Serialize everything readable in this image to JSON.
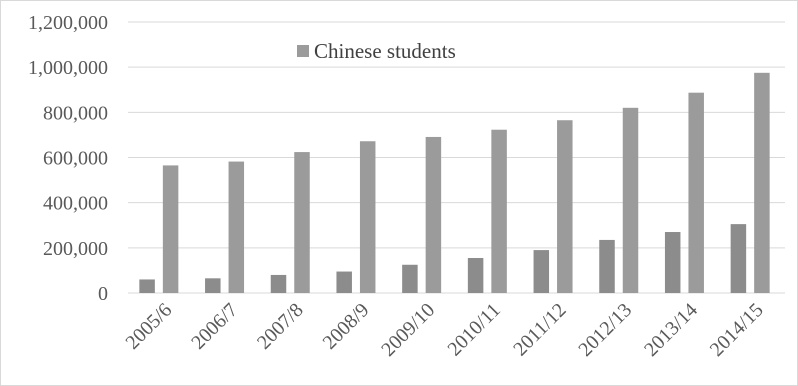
{
  "chart_data": {
    "type": "bar",
    "title": "",
    "xlabel": "",
    "ylabel": "",
    "categories": [
      "2005/6",
      "2006/7",
      "2007/8",
      "2008/9",
      "2009/10",
      "2010/11",
      "2011/12",
      "2012/13",
      "2013/14",
      "2014/15"
    ],
    "series": [
      {
        "values": [
          60000,
          65000,
          80000,
          95000,
          125000,
          155000,
          190000,
          235000,
          270000,
          305000
        ],
        "color": "#8c8c8c"
      },
      {
        "name": "Chinese students",
        "values": [
          565000,
          582000,
          624000,
          672000,
          691000,
          723000,
          765000,
          820000,
          887000,
          975000
        ],
        "color": "#9b9b9b"
      }
    ],
    "ylim": [
      0,
      1200000
    ],
    "yticks": [
      "0",
      "200,000",
      "400,000",
      "600,000",
      "800,000",
      "1,000,000",
      "1,200,000"
    ],
    "grid": true,
    "legend_position": "top-left, inside plot"
  }
}
